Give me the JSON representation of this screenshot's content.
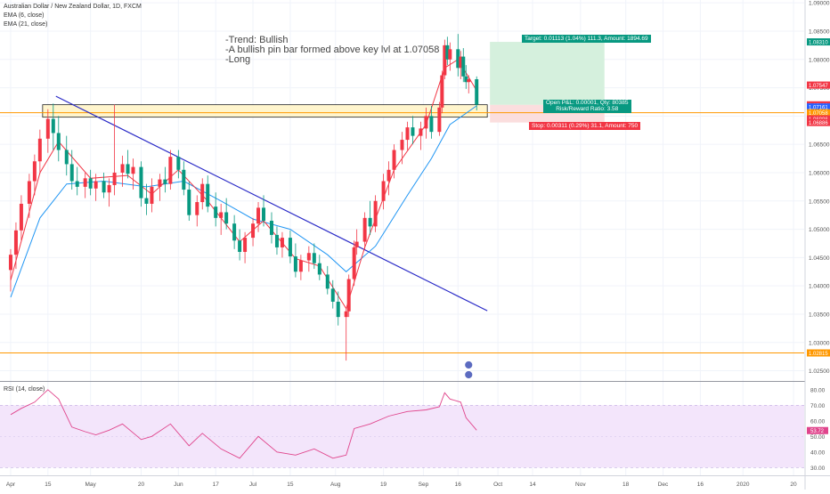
{
  "legend": {
    "symbol": "Australian Dollar / New Zealand Dollar, 1D, FXCM",
    "ema_fast": "EMA (6, close)",
    "ema_slow": "EMA (21, close)"
  },
  "annotation": {
    "lines": [
      "-Trend: Bullish",
      "-A bullish pin bar formed above key lvl at 1.07058",
      "-Long"
    ]
  },
  "position": {
    "target_label": "Target: 0.01113 (1.04%) 111.3, Amount: 1894.69",
    "open_pnl_label": "Open P&L: 0.00001, Qty: 80385",
    "risk_reward_label": "Risk/Reward Ratio: 3.58",
    "stop_label": "Stop: 0.00311 (0.29%) 31.1, Amount: 750"
  },
  "price_axis": {
    "ticks": [
      "1.09000",
      "1.08500",
      "1.08000",
      "1.07500",
      "1.07000",
      "1.06500",
      "1.06000",
      "1.05500",
      "1.05000",
      "1.04500",
      "1.04000",
      "1.03500",
      "1.03000",
      "1.02500"
    ],
    "badges": [
      {
        "text": "1.08310",
        "color": "#089981"
      },
      {
        "text": "1.07547",
        "color": "#f23645"
      },
      {
        "text": "1.07198",
        "color": "#f23645"
      },
      {
        "text": "1.07161",
        "color": "#2962ff"
      },
      {
        "text": "1.07058",
        "color": "#ff9800"
      },
      {
        "text": "1.06886",
        "color": "#f23645"
      },
      {
        "text": "1.06886",
        "color": "#f23645"
      },
      {
        "text": "1.02815",
        "color": "#ff9800"
      }
    ]
  },
  "rsi_axis": {
    "ticks": [
      "80.00",
      "70.00",
      "60.00",
      "50.00",
      "40.00",
      "30.00"
    ],
    "badge": "53.72"
  },
  "rsi_legend": "RSI (14, close)",
  "time_axis": {
    "ticks": [
      "Apr",
      "15",
      "May",
      "20",
      "Jun",
      "17",
      "Jul",
      "15",
      "Aug",
      "19",
      "Sep",
      "16",
      "Oct",
      "14",
      "Nov",
      "18",
      "Dec",
      "16",
      "2020",
      "20"
    ]
  },
  "colors": {
    "up": "#f23645",
    "down": "#089981",
    "ema_fast": "#f23645",
    "ema_slow": "#2196f3",
    "trendline": "#2a2ac7",
    "level": "#ff9800",
    "zone_fill": "#fff3c4",
    "zone_stroke": "#222222",
    "target_fill": "#d5f0dd",
    "stop_fill": "#fbdede",
    "rsi_line": "#e0458c",
    "rsi_band": "#f3e5fb"
  },
  "chart_data": {
    "type": "candlestick",
    "title": "Australian Dollar / New Zealand Dollar, 1D, FXCM",
    "ylim": [
      1.0232,
      1.0905
    ],
    "rsi_ylim": [
      25,
      85
    ],
    "key_level": 1.07058,
    "support_level": 1.02815,
    "zone": [
      1.0698,
      1.072
    ],
    "trendline": [
      {
        "date": "2019-04-18",
        "value": 1.0735
      },
      {
        "date": "2019-09-27",
        "value": 1.0356
      }
    ],
    "position": {
      "entry": 1.07197,
      "target": 1.0831,
      "stop": 1.06886
    },
    "candles": [
      {
        "date": "2019-04-01",
        "o": 1.0428,
        "h": 1.0465,
        "l": 1.039,
        "c": 1.0455
      },
      {
        "date": "2019-04-03",
        "o": 1.0455,
        "h": 1.0512,
        "l": 1.043,
        "c": 1.0498
      },
      {
        "date": "2019-04-05",
        "o": 1.0498,
        "h": 1.056,
        "l": 1.048,
        "c": 1.0545
      },
      {
        "date": "2019-04-08",
        "o": 1.0545,
        "h": 1.0598,
        "l": 1.052,
        "c": 1.0585
      },
      {
        "date": "2019-04-10",
        "o": 1.0585,
        "h": 1.0632,
        "l": 1.056,
        "c": 1.062
      },
      {
        "date": "2019-04-12",
        "o": 1.062,
        "h": 1.0676,
        "l": 1.0598,
        "c": 1.066
      },
      {
        "date": "2019-04-15",
        "o": 1.066,
        "h": 1.0712,
        "l": 1.0635,
        "c": 1.0695
      },
      {
        "date": "2019-04-17",
        "o": 1.0695,
        "h": 1.0722,
        "l": 1.064,
        "c": 1.067
      },
      {
        "date": "2019-04-19",
        "o": 1.067,
        "h": 1.07,
        "l": 1.062,
        "c": 1.064
      },
      {
        "date": "2019-04-22",
        "o": 1.064,
        "h": 1.0665,
        "l": 1.0595,
        "c": 1.0615
      },
      {
        "date": "2019-04-24",
        "o": 1.0615,
        "h": 1.064,
        "l": 1.057,
        "c": 1.0585
      },
      {
        "date": "2019-04-26",
        "o": 1.0585,
        "h": 1.061,
        "l": 1.056,
        "c": 1.0575
      },
      {
        "date": "2019-04-29",
        "o": 1.0575,
        "h": 1.06,
        "l": 1.0555,
        "c": 1.059
      },
      {
        "date": "2019-05-01",
        "o": 1.059,
        "h": 1.0605,
        "l": 1.056,
        "c": 1.0572
      },
      {
        "date": "2019-05-03",
        "o": 1.0572,
        "h": 1.0598,
        "l": 1.055,
        "c": 1.0585
      },
      {
        "date": "2019-05-06",
        "o": 1.0585,
        "h": 1.06,
        "l": 1.0555,
        "c": 1.0565
      },
      {
        "date": "2019-05-08",
        "o": 1.0565,
        "h": 1.059,
        "l": 1.054,
        "c": 1.0578
      },
      {
        "date": "2019-05-10",
        "o": 1.0578,
        "h": 1.072,
        "l": 1.056,
        "c": 1.06
      },
      {
        "date": "2019-05-13",
        "o": 1.06,
        "h": 1.063,
        "l": 1.0575,
        "c": 1.0615
      },
      {
        "date": "2019-05-15",
        "o": 1.0615,
        "h": 1.064,
        "l": 1.059,
        "c": 1.0598
      },
      {
        "date": "2019-05-17",
        "o": 1.0598,
        "h": 1.0625,
        "l": 1.057,
        "c": 1.061
      },
      {
        "date": "2019-05-20",
        "o": 1.061,
        "h": 1.062,
        "l": 1.054,
        "c": 1.0555
      },
      {
        "date": "2019-05-22",
        "o": 1.0555,
        "h": 1.058,
        "l": 1.0525,
        "c": 1.0545
      },
      {
        "date": "2019-05-24",
        "o": 1.0545,
        "h": 1.059,
        "l": 1.053,
        "c": 1.0575
      },
      {
        "date": "2019-05-27",
        "o": 1.0575,
        "h": 1.0598,
        "l": 1.055,
        "c": 1.0588
      },
      {
        "date": "2019-05-29",
        "o": 1.0588,
        "h": 1.061,
        "l": 1.0565,
        "c": 1.058
      },
      {
        "date": "2019-05-31",
        "o": 1.058,
        "h": 1.064,
        "l": 1.057,
        "c": 1.0628
      },
      {
        "date": "2019-06-03",
        "o": 1.0628,
        "h": 1.064,
        "l": 1.059,
        "c": 1.0605
      },
      {
        "date": "2019-06-05",
        "o": 1.0605,
        "h": 1.062,
        "l": 1.056,
        "c": 1.057
      },
      {
        "date": "2019-06-07",
        "o": 1.057,
        "h": 1.0585,
        "l": 1.0515,
        "c": 1.0525
      },
      {
        "date": "2019-06-10",
        "o": 1.0525,
        "h": 1.056,
        "l": 1.0505,
        "c": 1.0548
      },
      {
        "date": "2019-06-12",
        "o": 1.0548,
        "h": 1.059,
        "l": 1.0535,
        "c": 1.058
      },
      {
        "date": "2019-06-14",
        "o": 1.058,
        "h": 1.0595,
        "l": 1.053,
        "c": 1.054
      },
      {
        "date": "2019-06-17",
        "o": 1.054,
        "h": 1.0565,
        "l": 1.0505,
        "c": 1.052
      },
      {
        "date": "2019-06-19",
        "o": 1.052,
        "h": 1.0545,
        "l": 1.049,
        "c": 1.053
      },
      {
        "date": "2019-06-21",
        "o": 1.053,
        "h": 1.0555,
        "l": 1.05,
        "c": 1.051
      },
      {
        "date": "2019-06-24",
        "o": 1.051,
        "h": 1.0525,
        "l": 1.0465,
        "c": 1.048
      },
      {
        "date": "2019-06-26",
        "o": 1.048,
        "h": 1.05,
        "l": 1.0445,
        "c": 1.046
      },
      {
        "date": "2019-06-28",
        "o": 1.046,
        "h": 1.0495,
        "l": 1.044,
        "c": 1.0485
      },
      {
        "date": "2019-07-01",
        "o": 1.0485,
        "h": 1.052,
        "l": 1.047,
        "c": 1.051
      },
      {
        "date": "2019-07-03",
        "o": 1.051,
        "h": 1.0548,
        "l": 1.0495,
        "c": 1.0538
      },
      {
        "date": "2019-07-05",
        "o": 1.0538,
        "h": 1.056,
        "l": 1.0505,
        "c": 1.0515
      },
      {
        "date": "2019-07-08",
        "o": 1.0515,
        "h": 1.053,
        "l": 1.0475,
        "c": 1.049
      },
      {
        "date": "2019-07-10",
        "o": 1.049,
        "h": 1.0505,
        "l": 1.0455,
        "c": 1.0468
      },
      {
        "date": "2019-07-12",
        "o": 1.0468,
        "h": 1.0495,
        "l": 1.045,
        "c": 1.0485
      },
      {
        "date": "2019-07-15",
        "o": 1.0485,
        "h": 1.0498,
        "l": 1.044,
        "c": 1.0452
      },
      {
        "date": "2019-07-17",
        "o": 1.0452,
        "h": 1.0475,
        "l": 1.0415,
        "c": 1.0425
      },
      {
        "date": "2019-07-19",
        "o": 1.0425,
        "h": 1.0455,
        "l": 1.041,
        "c": 1.0445
      },
      {
        "date": "2019-07-22",
        "o": 1.0445,
        "h": 1.047,
        "l": 1.0425,
        "c": 1.0458
      },
      {
        "date": "2019-07-24",
        "o": 1.0458,
        "h": 1.0475,
        "l": 1.043,
        "c": 1.044
      },
      {
        "date": "2019-07-26",
        "o": 1.044,
        "h": 1.0455,
        "l": 1.041,
        "c": 1.042
      },
      {
        "date": "2019-07-29",
        "o": 1.042,
        "h": 1.0435,
        "l": 1.0385,
        "c": 1.0395
      },
      {
        "date": "2019-07-31",
        "o": 1.0395,
        "h": 1.041,
        "l": 1.036,
        "c": 1.0372
      },
      {
        "date": "2019-08-02",
        "o": 1.0372,
        "h": 1.039,
        "l": 1.033,
        "c": 1.0345
      },
      {
        "date": "2019-08-05",
        "o": 1.0345,
        "h": 1.036,
        "l": 1.0268,
        "c": 1.0355
      },
      {
        "date": "2019-08-06",
        "o": 1.0355,
        "h": 1.042,
        "l": 1.0345,
        "c": 1.0412
      },
      {
        "date": "2019-08-08",
        "o": 1.0412,
        "h": 1.048,
        "l": 1.04,
        "c": 1.0468
      },
      {
        "date": "2019-08-09",
        "o": 1.0468,
        "h": 1.05,
        "l": 1.0455,
        "c": 1.0478
      },
      {
        "date": "2019-08-12",
        "o": 1.0478,
        "h": 1.053,
        "l": 1.0465,
        "c": 1.052
      },
      {
        "date": "2019-08-14",
        "o": 1.052,
        "h": 1.055,
        "l": 1.049,
        "c": 1.0505
      },
      {
        "date": "2019-08-16",
        "o": 1.0505,
        "h": 1.056,
        "l": 1.0495,
        "c": 1.055
      },
      {
        "date": "2019-08-19",
        "o": 1.055,
        "h": 1.0598,
        "l": 1.0535,
        "c": 1.0585
      },
      {
        "date": "2019-08-21",
        "o": 1.0585,
        "h": 1.062,
        "l": 1.056,
        "c": 1.0605
      },
      {
        "date": "2019-08-23",
        "o": 1.0605,
        "h": 1.065,
        "l": 1.059,
        "c": 1.064
      },
      {
        "date": "2019-08-26",
        "o": 1.064,
        "h": 1.0672,
        "l": 1.0615,
        "c": 1.0658
      },
      {
        "date": "2019-08-28",
        "o": 1.0658,
        "h": 1.069,
        "l": 1.064,
        "c": 1.068
      },
      {
        "date": "2019-08-30",
        "o": 1.068,
        "h": 1.07,
        "l": 1.065,
        "c": 1.0665
      },
      {
        "date": "2019-09-02",
        "o": 1.0665,
        "h": 1.069,
        "l": 1.064,
        "c": 1.0678
      },
      {
        "date": "2019-09-04",
        "o": 1.0678,
        "h": 1.0715,
        "l": 1.066,
        "c": 1.07
      },
      {
        "date": "2019-09-06",
        "o": 1.07,
        "h": 1.0718,
        "l": 1.066,
        "c": 1.0672
      },
      {
        "date": "2019-09-09",
        "o": 1.0672,
        "h": 1.0725,
        "l": 1.0665,
        "c": 1.0715
      },
      {
        "date": "2019-09-10",
        "o": 1.0715,
        "h": 1.078,
        "l": 1.0705,
        "c": 1.0772
      },
      {
        "date": "2019-09-11",
        "o": 1.0772,
        "h": 1.0835,
        "l": 1.0765,
        "c": 1.0825
      },
      {
        "date": "2019-09-12",
        "o": 1.0825,
        "h": 1.084,
        "l": 1.079,
        "c": 1.08
      },
      {
        "date": "2019-09-13",
        "o": 1.08,
        "h": 1.083,
        "l": 1.078,
        "c": 1.0818
      },
      {
        "date": "2019-09-16",
        "o": 1.0818,
        "h": 1.0845,
        "l": 1.077,
        "c": 1.0785
      },
      {
        "date": "2019-09-17",
        "o": 1.0785,
        "h": 1.0815,
        "l": 1.0765,
        "c": 1.0805
      },
      {
        "date": "2019-09-18",
        "o": 1.0805,
        "h": 1.082,
        "l": 1.076,
        "c": 1.077
      },
      {
        "date": "2019-09-19",
        "o": 1.077,
        "h": 1.079,
        "l": 1.0748,
        "c": 1.076
      },
      {
        "date": "2019-09-20",
        "o": 1.076,
        "h": 1.0772,
        "l": 1.074,
        "c": 1.0765
      },
      {
        "date": "2019-09-23",
        "o": 1.0765,
        "h": 1.077,
        "l": 1.071,
        "c": 1.072
      }
    ],
    "ema_fast_series": [
      {
        "date": "2019-04-01",
        "value": 1.041
      },
      {
        "date": "2019-04-12",
        "value": 1.06
      },
      {
        "date": "2019-04-19",
        "value": 1.0655
      },
      {
        "date": "2019-05-01",
        "value": 1.059
      },
      {
        "date": "2019-05-15",
        "value": 1.0595
      },
      {
        "date": "2019-05-24",
        "value": 1.0562
      },
      {
        "date": "2019-06-03",
        "value": 1.0605
      },
      {
        "date": "2019-06-14",
        "value": 1.055
      },
      {
        "date": "2019-06-26",
        "value": 1.0478
      },
      {
        "date": "2019-07-05",
        "value": 1.0515
      },
      {
        "date": "2019-07-17",
        "value": 1.0448
      },
      {
        "date": "2019-07-26",
        "value": 1.0435
      },
      {
        "date": "2019-08-05",
        "value": 1.036
      },
      {
        "date": "2019-08-12",
        "value": 1.0468
      },
      {
        "date": "2019-08-23",
        "value": 1.0605
      },
      {
        "date": "2019-09-04",
        "value": 1.0685
      },
      {
        "date": "2019-09-11",
        "value": 1.0785
      },
      {
        "date": "2019-09-16",
        "value": 1.08
      },
      {
        "date": "2019-09-23",
        "value": 1.0745
      }
    ],
    "ema_slow_series": [
      {
        "date": "2019-04-01",
        "value": 1.038
      },
      {
        "date": "2019-04-12",
        "value": 1.052
      },
      {
        "date": "2019-04-22",
        "value": 1.058
      },
      {
        "date": "2019-05-06",
        "value": 1.0585
      },
      {
        "date": "2019-05-22",
        "value": 1.0575
      },
      {
        "date": "2019-06-05",
        "value": 1.0585
      },
      {
        "date": "2019-06-19",
        "value": 1.055
      },
      {
        "date": "2019-07-01",
        "value": 1.0518
      },
      {
        "date": "2019-07-15",
        "value": 1.05
      },
      {
        "date": "2019-07-29",
        "value": 1.0455
      },
      {
        "date": "2019-08-05",
        "value": 1.0425
      },
      {
        "date": "2019-08-16",
        "value": 1.047
      },
      {
        "date": "2019-08-28",
        "value": 1.056
      },
      {
        "date": "2019-09-06",
        "value": 1.0625
      },
      {
        "date": "2019-09-13",
        "value": 1.0685
      },
      {
        "date": "2019-09-23",
        "value": 1.0718
      }
    ],
    "rsi_series": [
      {
        "date": "2019-04-01",
        "value": 64
      },
      {
        "date": "2019-04-05",
        "value": 68
      },
      {
        "date": "2019-04-10",
        "value": 72
      },
      {
        "date": "2019-04-15",
        "value": 80
      },
      {
        "date": "2019-04-19",
        "value": 74
      },
      {
        "date": "2019-04-24",
        "value": 56
      },
      {
        "date": "2019-04-29",
        "value": 53
      },
      {
        "date": "2019-05-03",
        "value": 51
      },
      {
        "date": "2019-05-08",
        "value": 54
      },
      {
        "date": "2019-05-13",
        "value": 58
      },
      {
        "date": "2019-05-20",
        "value": 48
      },
      {
        "date": "2019-05-24",
        "value": 50
      },
      {
        "date": "2019-05-31",
        "value": 58
      },
      {
        "date": "2019-06-07",
        "value": 44
      },
      {
        "date": "2019-06-12",
        "value": 52
      },
      {
        "date": "2019-06-19",
        "value": 42
      },
      {
        "date": "2019-06-26",
        "value": 36
      },
      {
        "date": "2019-07-03",
        "value": 50
      },
      {
        "date": "2019-07-10",
        "value": 40
      },
      {
        "date": "2019-07-17",
        "value": 38
      },
      {
        "date": "2019-07-24",
        "value": 42
      },
      {
        "date": "2019-07-31",
        "value": 36
      },
      {
        "date": "2019-08-05",
        "value": 38
      },
      {
        "date": "2019-08-08",
        "value": 55
      },
      {
        "date": "2019-08-14",
        "value": 58
      },
      {
        "date": "2019-08-21",
        "value": 63
      },
      {
        "date": "2019-08-28",
        "value": 66
      },
      {
        "date": "2019-09-04",
        "value": 67
      },
      {
        "date": "2019-09-09",
        "value": 69
      },
      {
        "date": "2019-09-11",
        "value": 78
      },
      {
        "date": "2019-09-13",
        "value": 74
      },
      {
        "date": "2019-09-17",
        "value": 72
      },
      {
        "date": "2019-09-19",
        "value": 62
      },
      {
        "date": "2019-09-23",
        "value": 54
      }
    ]
  }
}
